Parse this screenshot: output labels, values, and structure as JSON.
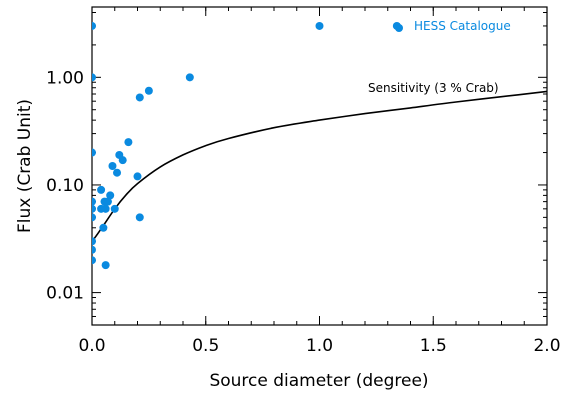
{
  "chart_data": {
    "type": "scatter",
    "title": "",
    "xlabel": "Source diameter (degree)",
    "ylabel": "Flux (Crab Unit)",
    "xlim": [
      0.0,
      2.0
    ],
    "ylim": [
      0.005,
      4.5
    ],
    "yscale": "log",
    "grid": false,
    "x_ticks": [
      {
        "value": 0.0,
        "label": "0.0"
      },
      {
        "value": 0.5,
        "label": "0.5"
      },
      {
        "value": 1.0,
        "label": "1.0"
      },
      {
        "value": 1.5,
        "label": "1.5"
      },
      {
        "value": 2.0,
        "label": "2.0"
      }
    ],
    "y_ticks": [
      {
        "value": 0.01,
        "label": "0.01"
      },
      {
        "value": 0.1,
        "label": "0.10"
      },
      {
        "value": 1.0,
        "label": "1.00"
      }
    ],
    "series": [
      {
        "name": "HESS Catalogue",
        "kind": "scatter",
        "color": "#0a8ae0",
        "x": [
          0.0,
          0.0,
          0.0,
          0.0,
          0.0,
          0.0,
          0.0,
          0.0,
          0.0,
          0.04,
          0.04,
          0.05,
          0.055,
          0.06,
          0.06,
          0.07,
          0.08,
          0.09,
          0.1,
          0.11,
          0.12,
          0.135,
          0.16,
          0.2,
          0.21,
          0.21,
          0.25,
          0.43,
          1.0,
          1.34
        ],
        "y": [
          3.0,
          1.0,
          0.2,
          0.07,
          0.05,
          0.03,
          0.025,
          0.02,
          0.06,
          0.06,
          0.09,
          0.04,
          0.07,
          0.018,
          0.06,
          0.07,
          0.08,
          0.15,
          0.06,
          0.13,
          0.19,
          0.17,
          0.25,
          0.12,
          0.05,
          0.65,
          0.75,
          1.0,
          3.0,
          3.0
        ]
      },
      {
        "name": "Sensitivity (3 % Crab)",
        "kind": "line",
        "color": "#000000",
        "x": [
          0.0,
          0.02,
          0.05,
          0.1,
          0.15,
          0.2,
          0.3,
          0.4,
          0.5,
          0.6,
          0.8,
          1.0,
          1.2,
          1.4,
          1.6,
          1.8,
          2.0
        ],
        "y": [
          0.03,
          0.034,
          0.042,
          0.06,
          0.081,
          0.103,
          0.147,
          0.19,
          0.232,
          0.27,
          0.34,
          0.4,
          0.46,
          0.52,
          0.59,
          0.66,
          0.74
        ]
      }
    ],
    "annotations": [
      {
        "text": "HESS Catalogue",
        "color": "#0a8ae0"
      },
      {
        "text": "Sensitivity (3 % Crab)",
        "color": "#000000"
      }
    ]
  }
}
